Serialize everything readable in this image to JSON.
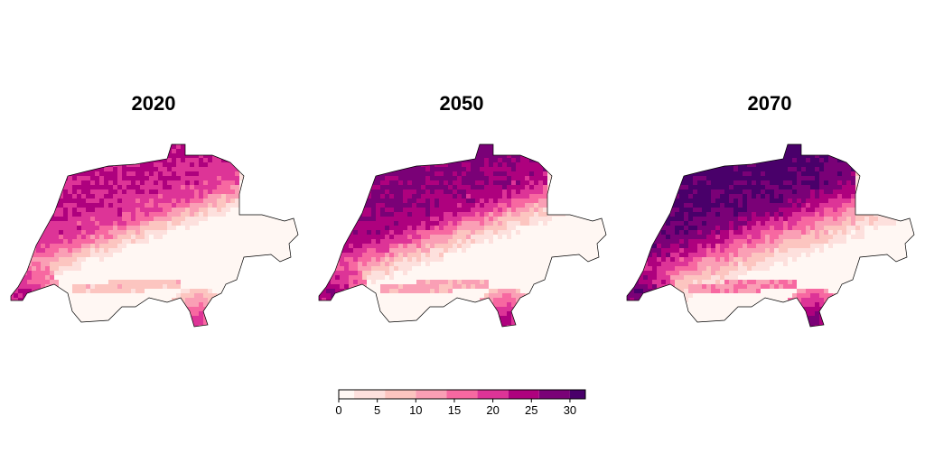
{
  "chart_data": {
    "type": "heatmap",
    "panels": [
      {
        "title": "2020",
        "level": 0
      },
      {
        "title": "2050",
        "level": 1
      },
      {
        "title": "2070",
        "level": 2
      }
    ],
    "legend": {
      "position": "bottom",
      "breaks": [
        0,
        2,
        6,
        10,
        14,
        18,
        22,
        26,
        30,
        32
      ],
      "colors": [
        "#fff7f3",
        "#fde0dd",
        "#fcc5c0",
        "#fa9fb5",
        "#f768a1",
        "#dd3497",
        "#ae017e",
        "#7a0177",
        "#49006a"
      ],
      "tick_labels": [
        "0",
        "5",
        "10",
        "15",
        "20",
        "25",
        "30"
      ],
      "tick_values": [
        0,
        5,
        10,
        15,
        20,
        25,
        30
      ],
      "range": [
        0,
        32
      ]
    },
    "grid": false,
    "border_color": "#000000"
  }
}
